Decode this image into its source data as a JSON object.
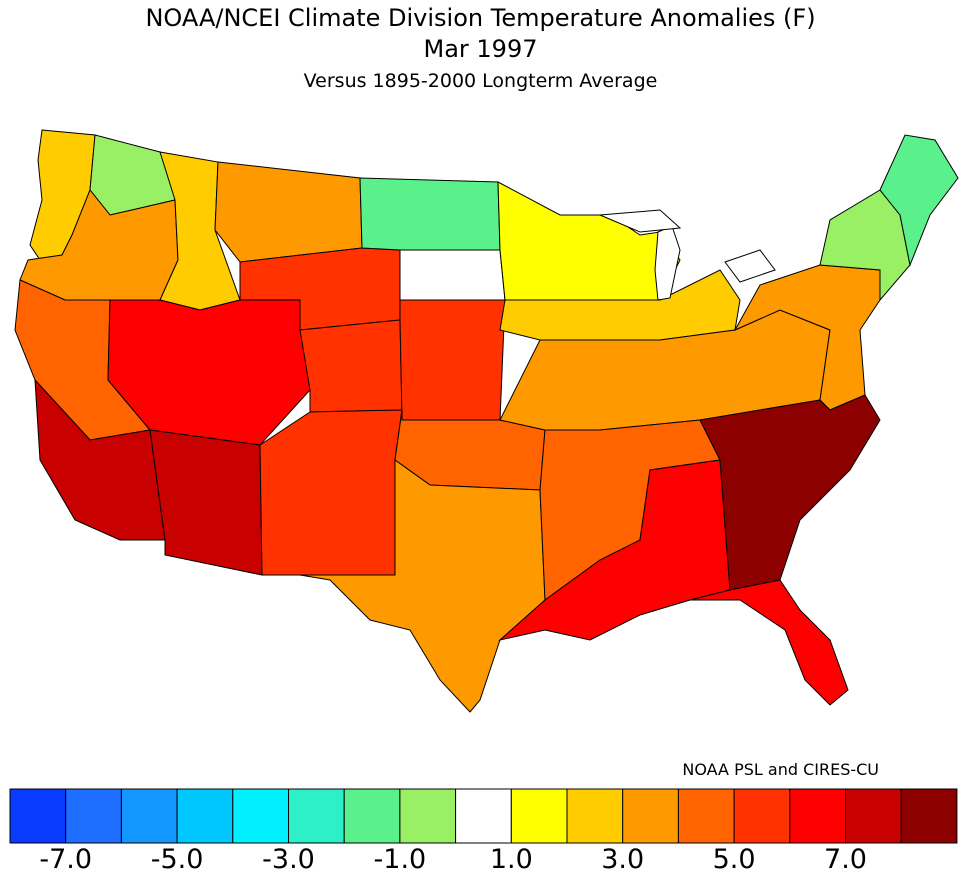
{
  "title": {
    "line1": "NOAA/NCEI Climate Division Temperature Anomalies (F)",
    "line2": "Mar 1997",
    "line3": "Versus 1895-2000 Longterm Average"
  },
  "credit": "NOAA PSL and CIRES-CU",
  "legend": {
    "colors": [
      "#0a3cff",
      "#1e6eff",
      "#1496ff",
      "#00c8ff",
      "#00f0ff",
      "#2ef0c8",
      "#5af08c",
      "#9af064",
      "#ffffff",
      "#ffff00",
      "#ffcc00",
      "#ff9900",
      "#ff6400",
      "#ff3200",
      "#ff0000",
      "#c80000",
      "#8c0000"
    ],
    "tick_labels": [
      "-7.0",
      "-5.0",
      "-3.0",
      "-1.0",
      "1.0",
      "3.0",
      "5.0",
      "7.0"
    ],
    "tick_box_index": [
      1,
      3,
      5,
      7,
      9,
      11,
      13,
      15
    ]
  },
  "regions": [
    {
      "name": "washington-coast",
      "value": 1.5
    },
    {
      "name": "washington-east",
      "value": -1.5
    },
    {
      "name": "oregon",
      "value": 2.5
    },
    {
      "name": "california-north",
      "value": 3.5
    },
    {
      "name": "california-south",
      "value": 6.0
    },
    {
      "name": "idaho",
      "value": 1.0
    },
    {
      "name": "montana",
      "value": 2.8
    },
    {
      "name": "wyoming",
      "value": 4.5
    },
    {
      "name": "utah-nevada",
      "value": 5.0
    },
    {
      "name": "arizona",
      "value": 6.0
    },
    {
      "name": "colorado",
      "value": 4.5
    },
    {
      "name": "new-mexico",
      "value": 4.8
    },
    {
      "name": "north-dakota",
      "value": -3.0
    },
    {
      "name": "south-dakota",
      "value": -1.0
    },
    {
      "name": "nebraska-kansas",
      "value": 4.8
    },
    {
      "name": "oklahoma",
      "value": 3.5
    },
    {
      "name": "texas",
      "value": 2.5
    },
    {
      "name": "minnesota-wisconsin",
      "value": 0.5
    },
    {
      "name": "upper-midwest",
      "value": 1.5
    },
    {
      "name": "mississippi-valley",
      "value": 3.8
    },
    {
      "name": "gulf-coast",
      "value": 5.0
    },
    {
      "name": "southeast",
      "value": 7.0
    },
    {
      "name": "florida",
      "value": 5.8
    },
    {
      "name": "ohio-valley",
      "value": 2.5
    },
    {
      "name": "mid-atlantic",
      "value": 2.0
    },
    {
      "name": "new-england",
      "value": -1.5
    },
    {
      "name": "maine",
      "value": -3.0
    }
  ]
}
